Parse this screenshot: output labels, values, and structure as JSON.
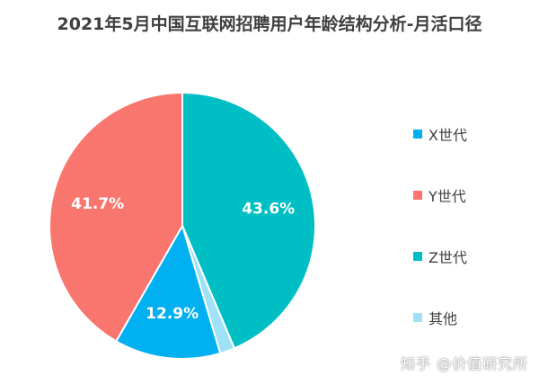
{
  "chart_data": {
    "type": "pie",
    "title": "2021年5月中国互联网招聘用户年龄结构分析-月活口径",
    "categories": [
      "X世代",
      "Y世代",
      "Z世代",
      "其他"
    ],
    "values": [
      12.9,
      41.7,
      43.6,
      1.8
    ],
    "data_labels": [
      "12.9%",
      "41.7%",
      "43.6%",
      ""
    ],
    "colors": [
      "#00B0F0",
      "#F8766D",
      "#00BFC4",
      "#9FE1F6"
    ],
    "legend_position": "right"
  },
  "watermark": "知乎 @价值研究所"
}
